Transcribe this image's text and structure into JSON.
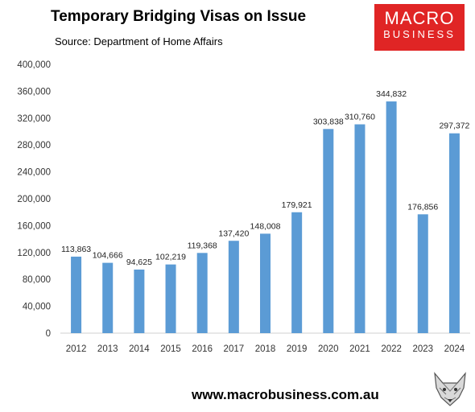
{
  "header": {
    "title": "Temporary Bridging Visas on Issue",
    "subtitle": "Source: Department of Home Affairs"
  },
  "logo": {
    "line1": "MACRO",
    "line2": "BUSINESS",
    "color": "#e02525"
  },
  "footer": {
    "url": "www.macrobusiness.com.au"
  },
  "chart_data": {
    "type": "bar",
    "title": "Temporary Bridging Visas on Issue",
    "subtitle": "Source: Department of Home Affairs",
    "categories": [
      "2012",
      "2013",
      "2014",
      "2015",
      "2016",
      "2017",
      "2018",
      "2019",
      "2020",
      "2021",
      "2022",
      "2023",
      "2024"
    ],
    "values": [
      113863,
      104666,
      94625,
      102219,
      119368,
      137420,
      148008,
      179921,
      303838,
      310760,
      344832,
      176856,
      297372
    ],
    "data_labels": [
      "113,863",
      "104,666",
      "94,625",
      "102,219",
      "119,368",
      "137,420",
      "148,008",
      "179,921",
      "303,838",
      "310,760",
      "344,832",
      "176,856",
      "297,372"
    ],
    "ylim": [
      0,
      400000
    ],
    "yticks": [
      0,
      40000,
      80000,
      120000,
      160000,
      200000,
      240000,
      280000,
      320000,
      360000,
      400000
    ],
    "ytick_labels": [
      "0",
      "40,000",
      "80,000",
      "120,000",
      "160,000",
      "200,000",
      "240,000",
      "280,000",
      "320,000",
      "360,000",
      "400,000"
    ],
    "xlabel": "",
    "ylabel": "",
    "grid": false,
    "legend": "none",
    "bar_color": "#5b9bd5"
  }
}
